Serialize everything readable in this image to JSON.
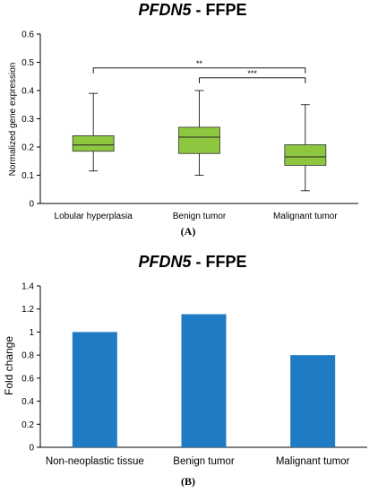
{
  "chart_data": [
    {
      "panel_label": "(A)",
      "type": "box",
      "title_gene": "PFDN5",
      "title_rest": " - FFPE",
      "ylabel": "Normalized gene expression",
      "ylim": [
        0,
        0.6
      ],
      "yticks": [
        "0",
        "0.1",
        "0.2",
        "0.3",
        "0.4",
        "0.5",
        "0.6"
      ],
      "grid": false,
      "color": "#8DC63F",
      "categories": [
        "Lobular hyperplasia",
        "Benign tumor",
        "Malignant tumor"
      ],
      "boxes": [
        {
          "min": 0.115,
          "q1": 0.185,
          "median": 0.207,
          "q3": 0.24,
          "max": 0.39
        },
        {
          "min": 0.1,
          "q1": 0.177,
          "median": 0.235,
          "q3": 0.27,
          "max": 0.4
        },
        {
          "min": 0.045,
          "q1": 0.135,
          "median": 0.165,
          "q3": 0.208,
          "max": 0.35
        }
      ],
      "significance": [
        {
          "from": 0,
          "to": 2,
          "label": "**"
        },
        {
          "from": 1,
          "to": 2,
          "label": "***"
        }
      ]
    },
    {
      "panel_label": "(B)",
      "type": "bar",
      "title_gene": "PFDN5",
      "title_rest": " - FFPE",
      "ylabel": "Fold change",
      "ylim": [
        0,
        1.4
      ],
      "yticks": [
        "0",
        "0.2",
        "0.4",
        "0.6",
        "0.8",
        "1",
        "1.2",
        "1.4"
      ],
      "grid": false,
      "color": "#1F7BC4",
      "categories": [
        "Non-neoplastic tissue",
        "Benign tumor",
        "Malignant tumor"
      ],
      "values": [
        1.0,
        1.155,
        0.8
      ]
    }
  ]
}
